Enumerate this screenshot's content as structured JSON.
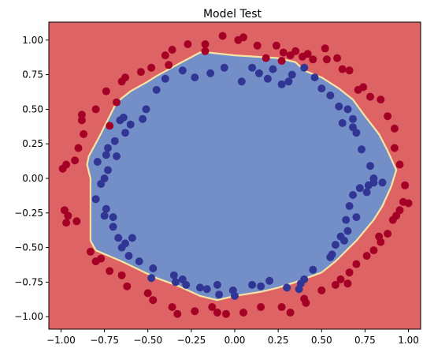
{
  "chart_data": {
    "type": "scatter",
    "title": "Model Test",
    "xlabel": "",
    "ylabel": "",
    "xlim": [
      -1.07,
      1.07
    ],
    "ylim": [
      -1.09,
      1.13
    ],
    "x_ticks": [
      "−1.00",
      "−0.75",
      "−0.50",
      "−0.25",
      "0.00",
      "0.25",
      "0.50",
      "0.75",
      "1.00"
    ],
    "x_tick_values": [
      -1.0,
      -0.75,
      -0.5,
      -0.25,
      0.0,
      0.25,
      0.5,
      0.75,
      1.0
    ],
    "y_ticks": [
      "−1.00",
      "−0.75",
      "−0.50",
      "−0.25",
      "0.00",
      "0.25",
      "0.50",
      "0.75",
      "1.00"
    ],
    "y_tick_values": [
      -1.0,
      -0.75,
      -0.5,
      -0.25,
      0.0,
      0.25,
      0.5,
      0.75,
      1.0
    ],
    "grid": false,
    "colors": {
      "outer_region": "#dd6365",
      "inner_region": "#748fc8",
      "boundary": "#f7e4a4",
      "class_0_points": "#a50026",
      "class_1_points": "#313695"
    },
    "decision_boundary": [
      [
        -0.68,
        0.55
      ],
      [
        -0.6,
        0.63
      ],
      [
        -0.5,
        0.7
      ],
      [
        -0.45,
        0.74
      ],
      [
        -0.32,
        0.83
      ],
      [
        -0.2,
        0.91
      ],
      [
        -0.15,
        0.91
      ],
      [
        0.0,
        0.89
      ],
      [
        0.25,
        0.87
      ],
      [
        0.35,
        0.84
      ],
      [
        0.4,
        0.78
      ],
      [
        0.5,
        0.73
      ],
      [
        0.6,
        0.65
      ],
      [
        0.68,
        0.57
      ],
      [
        0.75,
        0.45
      ],
      [
        0.83,
        0.32
      ],
      [
        0.88,
        0.2
      ],
      [
        0.93,
        0.06
      ],
      [
        0.9,
        -0.06
      ],
      [
        0.85,
        -0.2
      ],
      [
        0.8,
        -0.3
      ],
      [
        0.7,
        -0.45
      ],
      [
        0.58,
        -0.6
      ],
      [
        0.5,
        -0.68
      ],
      [
        0.35,
        -0.75
      ],
      [
        0.25,
        -0.79
      ],
      [
        0.15,
        -0.82
      ],
      [
        0.0,
        -0.85
      ],
      [
        -0.1,
        -0.88
      ],
      [
        -0.2,
        -0.85
      ],
      [
        -0.32,
        -0.78
      ],
      [
        -0.45,
        -0.72
      ],
      [
        -0.55,
        -0.66
      ],
      [
        -0.65,
        -0.6
      ],
      [
        -0.8,
        -0.52
      ],
      [
        -0.83,
        -0.45
      ],
      [
        -0.83,
        0.0
      ],
      [
        -0.85,
        0.1
      ],
      [
        -0.84,
        0.16
      ],
      [
        -0.78,
        0.3
      ],
      [
        -0.72,
        0.45
      ]
    ],
    "series": [
      {
        "values": [
          [
            -0.4,
            0.89
          ],
          [
            -0.38,
            0.82
          ],
          [
            -0.36,
            0.93
          ],
          [
            -0.27,
            0.97
          ],
          [
            -0.17,
            0.97
          ],
          [
            -0.17,
            0.92
          ],
          [
            0.02,
            1.0
          ],
          [
            0.05,
            1.02
          ],
          [
            0.13,
            0.96
          ],
          [
            0.24,
            0.96
          ],
          [
            0.28,
            0.91
          ],
          [
            0.35,
            0.92
          ],
          [
            0.42,
            0.9
          ],
          [
            0.45,
            0.86
          ],
          [
            0.53,
            0.86
          ],
          [
            -0.68,
            0.55
          ],
          [
            -0.65,
            0.7
          ],
          [
            -0.63,
            0.73
          ],
          [
            -0.48,
            0.8
          ],
          [
            -0.54,
            0.77
          ],
          [
            -0.74,
            0.63
          ],
          [
            -0.8,
            0.5
          ],
          [
            -0.88,
            0.46
          ],
          [
            -0.87,
            0.32
          ],
          [
            -0.9,
            0.22
          ],
          [
            -0.92,
            0.13
          ],
          [
            -0.97,
            0.1
          ],
          [
            -0.99,
            0.07
          ],
          [
            -0.96,
            -0.27
          ],
          [
            -0.98,
            -0.23
          ],
          [
            -0.97,
            -0.32
          ],
          [
            -0.91,
            -0.31
          ],
          [
            -0.83,
            -0.53
          ],
          [
            -0.77,
            -0.58
          ],
          [
            -0.72,
            -0.67
          ],
          [
            -0.8,
            -0.6
          ],
          [
            -0.65,
            -0.7
          ],
          [
            -0.62,
            -0.78
          ],
          [
            -0.5,
            -0.83
          ],
          [
            -0.47,
            -0.88
          ],
          [
            -0.36,
            -0.93
          ],
          [
            -0.33,
            -0.98
          ],
          [
            -0.23,
            -0.96
          ],
          [
            -0.13,
            -0.93
          ],
          [
            -0.1,
            -0.97
          ],
          [
            -0.05,
            -0.98
          ],
          [
            0.05,
            -0.97
          ],
          [
            0.15,
            -0.93
          ],
          [
            0.27,
            -0.93
          ],
          [
            0.32,
            -0.97
          ],
          [
            0.4,
            -0.87
          ],
          [
            0.41,
            -0.9
          ],
          [
            0.5,
            -0.81
          ],
          [
            0.58,
            -0.77
          ],
          [
            0.61,
            -0.73
          ],
          [
            0.65,
            -0.76
          ],
          [
            0.66,
            -0.68
          ],
          [
            0.7,
            -0.62
          ],
          [
            0.76,
            -0.56
          ],
          [
            0.8,
            -0.52
          ],
          [
            0.84,
            -0.46
          ],
          [
            0.88,
            -0.4
          ],
          [
            0.83,
            -0.42
          ],
          [
            0.91,
            -0.3
          ],
          [
            0.93,
            -0.27
          ],
          [
            0.95,
            -0.23
          ],
          [
            0.97,
            -0.17
          ],
          [
            0.98,
            -0.05
          ],
          [
            1.0,
            -0.18
          ],
          [
            0.95,
            0.1
          ],
          [
            0.92,
            0.22
          ],
          [
            0.92,
            0.36
          ],
          [
            0.88,
            0.45
          ],
          [
            0.84,
            0.57
          ],
          [
            0.78,
            0.59
          ],
          [
            0.74,
            0.66
          ],
          [
            0.66,
            0.78
          ],
          [
            0.71,
            0.64
          ],
          [
            0.62,
            0.79
          ],
          [
            0.59,
            0.87
          ],
          [
            0.52,
            0.94
          ],
          [
            0.39,
            0.88
          ],
          [
            0.32,
            0.89
          ],
          [
            0.27,
            0.85
          ],
          [
            0.18,
            0.87
          ],
          [
            -0.72,
            0.38
          ],
          [
            -0.88,
            0.42
          ],
          [
            -0.07,
            1.03
          ]
        ]
      },
      {
        "values": [
          [
            -0.3,
            0.78
          ],
          [
            -0.14,
            0.76
          ],
          [
            -0.06,
            0.8
          ],
          [
            0.04,
            0.7
          ],
          [
            0.1,
            0.8
          ],
          [
            0.14,
            0.76
          ],
          [
            0.19,
            0.72
          ],
          [
            0.22,
            0.79
          ],
          [
            0.27,
            0.68
          ],
          [
            0.33,
            0.75
          ],
          [
            0.4,
            0.8
          ],
          [
            0.46,
            0.73
          ],
          [
            0.5,
            0.65
          ],
          [
            -0.23,
            0.73
          ],
          [
            -0.4,
            0.72
          ],
          [
            -0.45,
            0.64
          ],
          [
            -0.51,
            0.5
          ],
          [
            -0.64,
            0.44
          ],
          [
            -0.63,
            0.33
          ],
          [
            -0.69,
            0.27
          ],
          [
            -0.74,
            0.17
          ],
          [
            -0.79,
            0.12
          ],
          [
            -0.73,
            0.06
          ],
          [
            -0.77,
            -0.04
          ],
          [
            -0.8,
            -0.15
          ],
          [
            -0.74,
            -0.22
          ],
          [
            -0.75,
            -0.27
          ],
          [
            -0.7,
            -0.35
          ],
          [
            -0.67,
            -0.43
          ],
          [
            -0.63,
            -0.47
          ],
          [
            -0.59,
            -0.43
          ],
          [
            -0.61,
            -0.56
          ],
          [
            -0.55,
            -0.6
          ],
          [
            -0.47,
            -0.65
          ],
          [
            -0.35,
            -0.7
          ],
          [
            -0.3,
            -0.73
          ],
          [
            -0.34,
            -0.75
          ],
          [
            -0.2,
            -0.79
          ],
          [
            -0.1,
            -0.77
          ],
          [
            -0.09,
            -0.84
          ],
          [
            0.0,
            -0.85
          ],
          [
            0.1,
            -0.77
          ],
          [
            0.15,
            -0.78
          ],
          [
            0.2,
            -0.74
          ],
          [
            0.3,
            -0.79
          ],
          [
            0.38,
            -0.76
          ],
          [
            0.4,
            -0.73
          ],
          [
            0.45,
            -0.66
          ],
          [
            0.55,
            -0.57
          ],
          [
            0.58,
            -0.48
          ],
          [
            0.63,
            -0.45
          ],
          [
            0.64,
            -0.3
          ],
          [
            0.66,
            -0.2
          ],
          [
            0.68,
            -0.12
          ],
          [
            0.72,
            -0.07
          ],
          [
            0.77,
            -0.05
          ],
          [
            0.8,
            -0.03
          ],
          [
            0.85,
            -0.03
          ],
          [
            0.78,
            0.09
          ],
          [
            0.73,
            0.21
          ],
          [
            0.7,
            0.33
          ],
          [
            0.68,
            0.37
          ],
          [
            0.62,
            0.4
          ],
          [
            0.6,
            0.52
          ],
          [
            0.65,
            0.5
          ],
          [
            0.55,
            0.6
          ],
          [
            -0.53,
            0.43
          ],
          [
            -0.66,
            0.42
          ],
          [
            -0.6,
            0.39
          ],
          [
            -0.68,
            0.16
          ],
          [
            -0.73,
            0.22
          ],
          [
            -0.75,
            0.0
          ],
          [
            -0.7,
            -0.28
          ],
          [
            -0.65,
            -0.5
          ],
          [
            -0.48,
            -0.72
          ],
          [
            -0.28,
            -0.77
          ],
          [
            -0.16,
            -0.8
          ],
          [
            -0.01,
            -0.81
          ],
          [
            0.37,
            -0.8
          ],
          [
            0.56,
            -0.55
          ],
          [
            0.61,
            -0.42
          ],
          [
            0.65,
            -0.38
          ],
          [
            0.7,
            -0.28
          ],
          [
            0.76,
            -0.1
          ],
          [
            0.8,
            0.0
          ],
          [
            0.68,
            0.43
          ],
          [
            0.31,
            0.7
          ]
        ]
      }
    ]
  }
}
